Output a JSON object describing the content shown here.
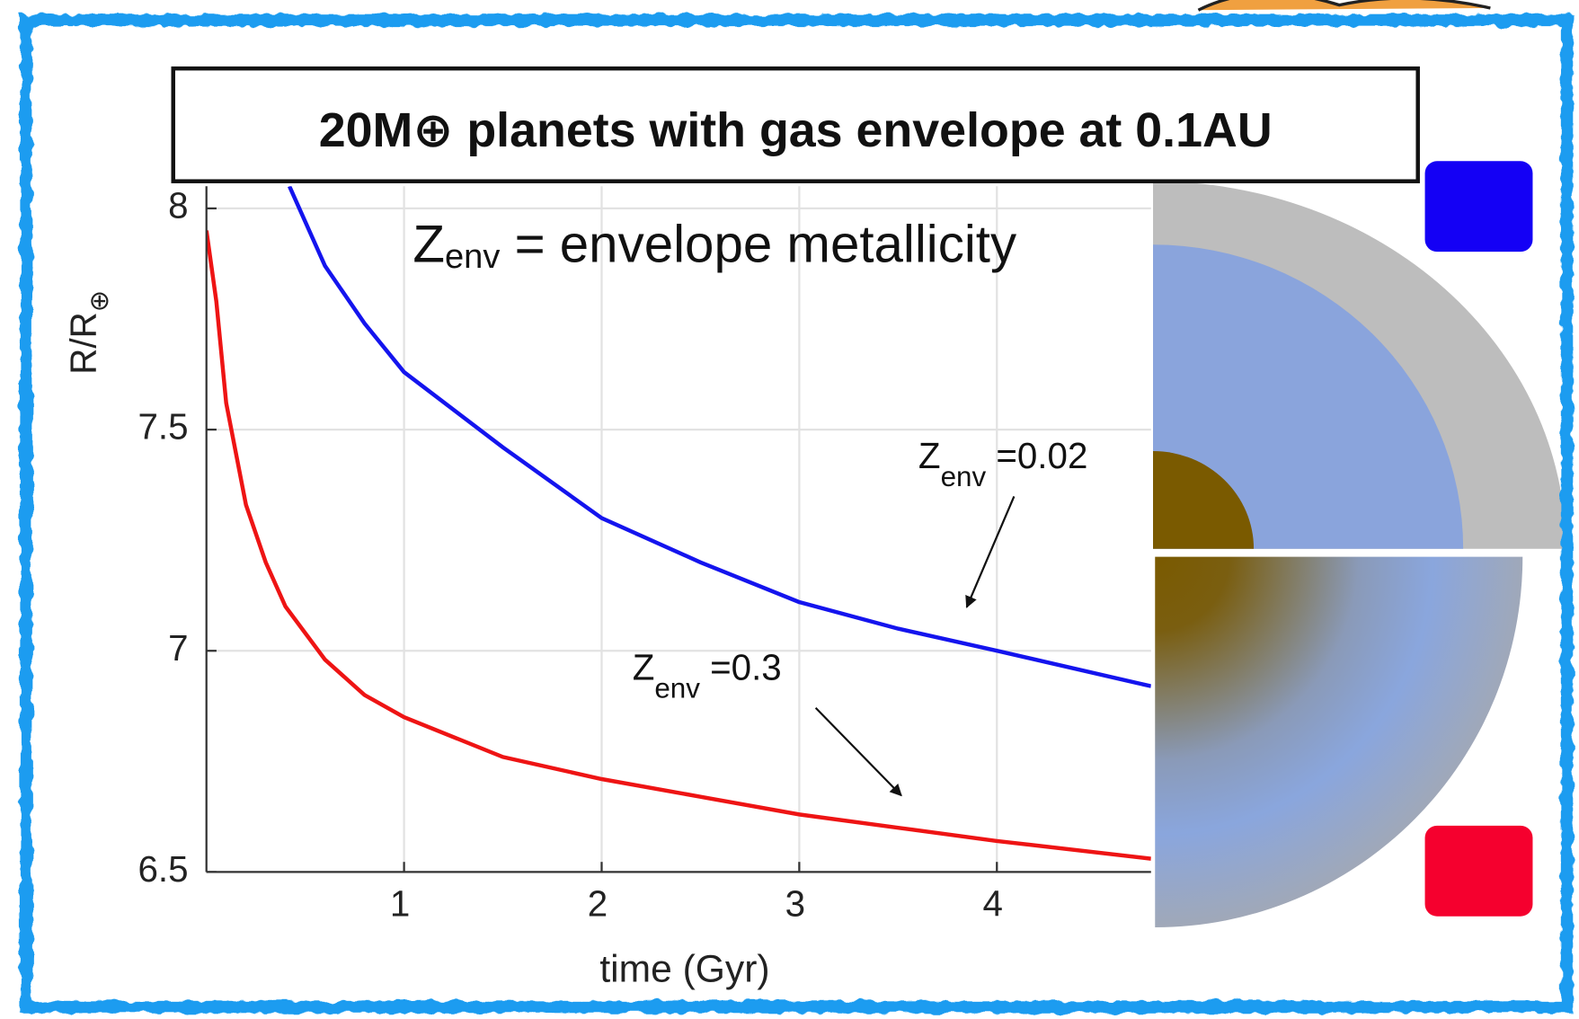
{
  "chart_data": {
    "type": "line",
    "title": "20M⊕ planets with gas envelope at 0.1AU",
    "subtitle": {
      "main": "Z",
      "sub": "env",
      "rest": " = envelope metallicity"
    },
    "x_label": "time (Gyr)",
    "y_label": {
      "main": "R/R",
      "sub": "⊕"
    },
    "xlim": [
      0,
      4.78
    ],
    "ylim": [
      6.5,
      8.05
    ],
    "xticks": [
      1,
      2,
      3,
      4
    ],
    "yticks": [
      6.5,
      7,
      7.5,
      8
    ],
    "grid": true,
    "series": [
      {
        "color": "#1414ee",
        "x": [
          0.42,
          0.6,
          0.8,
          1,
          1.5,
          2,
          2.5,
          3,
          3.5,
          4,
          4.78
        ],
        "values": [
          8.05,
          7.87,
          7.74,
          7.63,
          7.46,
          7.3,
          7.2,
          7.11,
          7.05,
          7.0,
          6.92
        ]
      },
      {
        "color": "#ee1414",
        "x": [
          0,
          0.05,
          0.1,
          0.2,
          0.3,
          0.4,
          0.6,
          0.8,
          1,
          1.5,
          2,
          2.5,
          3,
          3.5,
          4,
          4.78
        ],
        "values": [
          7.95,
          7.79,
          7.56,
          7.33,
          7.2,
          7.1,
          6.98,
          6.9,
          6.85,
          6.76,
          6.71,
          6.67,
          6.63,
          6.6,
          6.57,
          6.53
        ]
      }
    ],
    "annotations": [
      {
        "main": "Z",
        "sub": "env",
        "rest": " =0.02"
      },
      {
        "main": "Z",
        "sub": "env",
        "rest": " =0.3"
      }
    ]
  }
}
